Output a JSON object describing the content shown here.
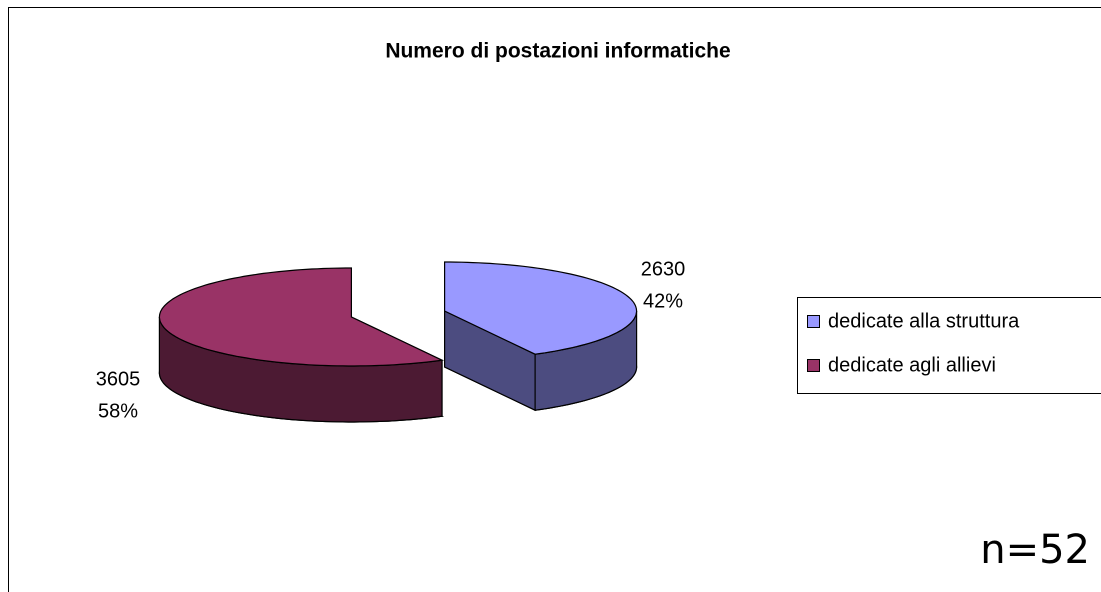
{
  "chart_data": {
    "type": "pie3d",
    "title": "Numero di postazioni informatiche",
    "categories": [
      "dedicate alla struttura",
      "dedicate agli allievi"
    ],
    "values": [
      2630,
      3605
    ],
    "percent_labels": [
      "42%",
      "58%"
    ],
    "colors": [
      "#9999ff",
      "#993366"
    ],
    "legend": "right",
    "annotation": "n=52"
  }
}
